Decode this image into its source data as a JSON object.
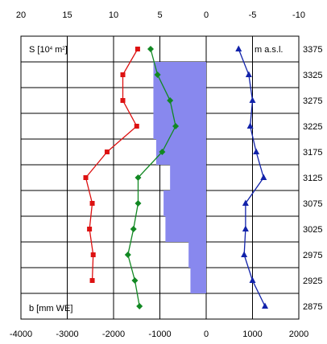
{
  "chart_data": {
    "type": "line",
    "title": "",
    "top_axis": {
      "label_parts": [
        "S [10",
        "4",
        " m",
        "2",
        "]"
      ],
      "range": [
        20,
        -10
      ],
      "ticks": [
        "20",
        "15",
        "10",
        "5",
        "0",
        "-5",
        "-10"
      ],
      "tick_values": [
        20,
        15,
        10,
        5,
        0,
        -5,
        -10
      ]
    },
    "bottom_axis": {
      "label": "b [mm WE]",
      "range": [
        -4000,
        2000
      ],
      "ticks": [
        "-4000",
        "-3000",
        "-2000",
        "-1000",
        "0",
        "1000",
        "2000"
      ],
      "tick_values": [
        -4000,
        -3000,
        -2000,
        -1000,
        0,
        1000,
        2000
      ]
    },
    "right_axis": {
      "label": "m a.s.l.",
      "ticks": [
        "3375",
        "3325",
        "3275",
        "3225",
        "3175",
        "3125",
        "3075",
        "3025",
        "2975",
        "2925",
        "2875"
      ],
      "tick_values": [
        3375,
        3325,
        3275,
        3225,
        3175,
        3125,
        3075,
        3025,
        2975,
        2925,
        2875
      ],
      "range": [
        3400,
        2850
      ]
    },
    "grid": true,
    "series": [
      {
        "axis": "top",
        "marker": "square",
        "color": "#dd1111",
        "elevations": [
          3375,
          3325,
          3275,
          3225,
          3175,
          3125,
          3075,
          3025,
          2975,
          2925
        ],
        "values": [
          7.4,
          9.0,
          9.0,
          7.5,
          10.7,
          13.0,
          12.3,
          12.6,
          12.2,
          12.3
        ]
      },
      {
        "axis": "bottom",
        "marker": "diamond",
        "color": "#118822",
        "elevations": [
          3375,
          3325,
          3275,
          3225,
          3175,
          3125,
          3075,
          3025,
          2975,
          2925,
          2875
        ],
        "values": [
          -1200,
          -1050,
          -780,
          -660,
          -950,
          -1470,
          -1470,
          -1570,
          -1690,
          -1540,
          -1440
        ]
      },
      {
        "axis": "bottom",
        "marker": "triangle",
        "color": "#1122aa",
        "elevations": [
          3375,
          3325,
          3275,
          3225,
          3175,
          3125,
          3075,
          3025,
          2975,
          2925,
          2875
        ],
        "values": [
          700,
          920,
          1000,
          950,
          1080,
          1240,
          850,
          850,
          820,
          1000,
          1270
        ]
      }
    ],
    "area": {
      "axis": "top",
      "color": "#8888ee",
      "bands": [
        {
          "from": 3350,
          "to": 3200,
          "value": 5.7
        },
        {
          "from": 3200,
          "to": 3150,
          "value": 5.4
        },
        {
          "from": 3150,
          "to": 3100,
          "value": 3.9
        },
        {
          "from": 3100,
          "to": 3050,
          "value": 4.6
        },
        {
          "from": 3050,
          "to": 3000,
          "value": 4.4
        },
        {
          "from": 3000,
          "to": 2950,
          "value": 1.9
        },
        {
          "from": 2950,
          "to": 2900,
          "value": 1.7
        }
      ]
    }
  }
}
